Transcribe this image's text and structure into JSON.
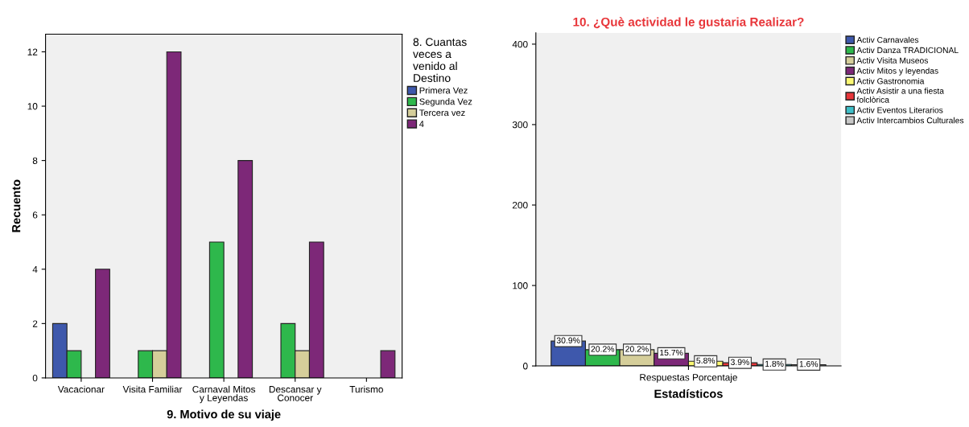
{
  "chart_data": [
    {
      "type": "bar",
      "xlabel": "9. Motivo de su viaje",
      "ylabel": "Recuento",
      "legend_title": "8. Cuantas\nveces a\nvenido al\nDestino",
      "categories": [
        "Vacacionar",
        "Visita Familiar",
        "Carnaval Mitos\ny Leyendas",
        "Descansar y\nConocer",
        "Turismo"
      ],
      "series": [
        {
          "name": "Primera Vez",
          "color": "#3e58ac",
          "values": [
            2,
            null,
            null,
            null,
            null
          ]
        },
        {
          "name": "Segunda Vez",
          "color": "#2eb84c",
          "values": [
            1,
            1,
            5,
            2,
            null
          ]
        },
        {
          "name": "Tercera vez",
          "color": "#d5ce9a",
          "values": [
            null,
            1,
            null,
            1,
            null
          ]
        },
        {
          "name": "4",
          "color": "#7d2878",
          "values": [
            4,
            12,
            8,
            5,
            1
          ]
        }
      ],
      "ylim": [
        0,
        12.65
      ],
      "yticks": [
        0,
        2,
        4,
        6,
        8,
        10,
        12
      ],
      "grid": false,
      "legend": "top right"
    },
    {
      "type": "bar",
      "title": "10. ¿Què actividad le gustaria Realizar?",
      "xlabel": "Estadísticos",
      "categories": [
        "Respuestas Porcentaje"
      ],
      "series": [
        {
          "name": "Activ Carnavales",
          "color": "#3e58ac",
          "values": [
            30.9
          ],
          "value_labels": [
            "30.9%"
          ]
        },
        {
          "name": "Activ Danza TRADICIONAL",
          "color": "#2eb84c",
          "values": [
            20.2
          ],
          "value_labels": [
            "20.2%"
          ]
        },
        {
          "name": "Activ Visita Museos",
          "color": "#d5ce9a",
          "values": [
            20.2
          ],
          "value_labels": [
            "20.2%"
          ]
        },
        {
          "name": "Activ Mitos y leyendas",
          "color": "#7d2878",
          "values": [
            15.7
          ],
          "value_labels": [
            "15.7%"
          ]
        },
        {
          "name": "Activ Gastronomia",
          "color": "#fbf873",
          "values": [
            5.8
          ],
          "value_labels": [
            "5.8%"
          ]
        },
        {
          "name": "Activ Asistir a una fiesta\nfolclòrica",
          "color": "#e8363a",
          "values": [
            3.9
          ],
          "value_labels": [
            "3.9%"
          ]
        },
        {
          "name": "Activ Eventos Literarios",
          "color": "#3fbfc8",
          "values": [
            1.8
          ],
          "value_labels": [
            "1.8%"
          ]
        },
        {
          "name": "Activ Intercambios Culturales",
          "color": "#c8c8c8",
          "values": [
            1.6
          ],
          "value_labels": [
            "1.6%"
          ]
        }
      ],
      "ylim": [
        0,
        414
      ],
      "yticks": [
        0,
        100,
        200,
        300,
        400
      ],
      "grid": false,
      "legend": "top right"
    }
  ]
}
